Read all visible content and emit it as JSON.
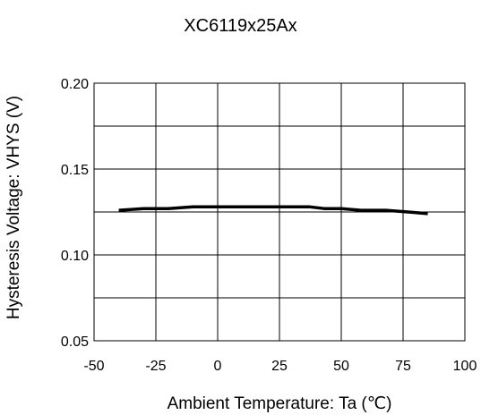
{
  "chart_data": {
    "type": "line",
    "title": "XC6119x25Ax",
    "xlabel": "Ambient Temperature: Ta (℃)",
    "ylabel": "Hysteresis Voltage: VHYS (V)",
    "xlim": [
      -50,
      100
    ],
    "ylim": [
      0.05,
      0.2
    ],
    "xticks": [
      -50,
      -25,
      0,
      25,
      50,
      75,
      100
    ],
    "xtick_labels": [
      "-50",
      "-25",
      "0",
      "25",
      "50",
      "75",
      "100"
    ],
    "yticks": [
      0.05,
      0.1,
      0.15,
      0.2
    ],
    "ytick_labels": [
      "0.05",
      "0.10",
      "0.15",
      "0.20"
    ],
    "gridlines_x": [
      -50,
      -25,
      0,
      25,
      50,
      75,
      100
    ],
    "gridlines_y": [
      0.05,
      0.075,
      0.1,
      0.125,
      0.15,
      0.175,
      0.2
    ],
    "grid": true,
    "legend": "none",
    "series": [
      {
        "color": "#000000",
        "x": [
          -40,
          -30,
          -20,
          -10,
          0,
          10,
          20,
          30,
          37,
          43,
          50,
          58,
          68,
          77,
          85
        ],
        "y": [
          0.126,
          0.127,
          0.127,
          0.128,
          0.128,
          0.128,
          0.128,
          0.128,
          0.128,
          0.127,
          0.127,
          0.126,
          0.126,
          0.125,
          0.124
        ]
      }
    ]
  }
}
